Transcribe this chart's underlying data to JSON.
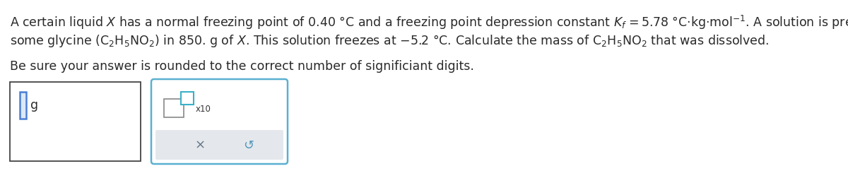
{
  "line1": "A certain liquid $\\mathit{X}$ has a normal freezing point of 0.40 °C and a freezing point depression constant $K_{f}$ = 5.78 °C·kg·mol$^{-1}$. A solution is prepared by dissolving",
  "line2": "some glycine (C$_{2}$H$_{5}$NO$_{2}$) in 850. g of $\\mathit{X}$. This solution freezes at −5.2 °C. Calculate the mass of C$_{2}$H$_{5}$NO$_{2}$ that was dissolved.",
  "line3": "Be sure your answer is rounded to the correct number of significiant digits.",
  "background_color": "#ffffff",
  "text_color": "#2a2a2a",
  "font_size_main": 12.5,
  "box1_edge": "#444444",
  "box2_edge": "#5ab0d0",
  "cursor_edge": "#4a7fd4",
  "cursor_face": "#dde8f8",
  "small_box_edge": "#888888",
  "small_cyan_edge": "#3ab0c8",
  "gray_face": "#e4e8ec",
  "x_color": "#667788",
  "undo_color": "#5599bb",
  "x10_color": "#333333"
}
